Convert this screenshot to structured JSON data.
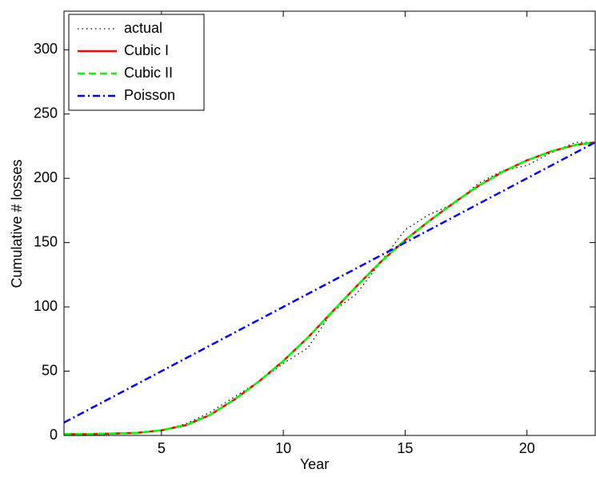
{
  "chart_data": {
    "type": "line",
    "x_label": "Year",
    "y_label": "Cumulative # losses",
    "x": [
      1,
      2,
      3,
      4,
      5,
      6,
      7,
      8,
      9,
      10,
      11,
      12,
      13,
      14,
      15,
      16,
      17,
      18,
      19,
      20,
      21,
      22,
      22.8
    ],
    "series": [
      {
        "name": "actual",
        "color": "#000000",
        "style": "dotted",
        "values": [
          0,
          0,
          1,
          2,
          4,
          9,
          18,
          30,
          42,
          56,
          68,
          96,
          110,
          135,
          160,
          172,
          180,
          196,
          206,
          210,
          220,
          228,
          228
        ]
      },
      {
        "name": "Cubic I",
        "color": "#ff0000",
        "style": "solid",
        "values": [
          1,
          1,
          1.5,
          2,
          4,
          8,
          16,
          28,
          42,
          58,
          76,
          96,
          116,
          135,
          152,
          167,
          181,
          194,
          205,
          214,
          221,
          226,
          228
        ]
      },
      {
        "name": "Cubic II",
        "color": "#00ff00",
        "style": "dashed",
        "values": [
          1,
          1,
          1.5,
          2,
          4,
          8,
          16,
          28,
          42,
          58,
          76,
          96,
          116,
          135,
          152,
          167,
          181,
          194,
          205,
          214,
          221,
          226,
          228
        ]
      },
      {
        "name": "Poisson",
        "color": "#0000ff",
        "style": "dashdot",
        "values": [
          10,
          20,
          30,
          40,
          50,
          60,
          70,
          80,
          90,
          100,
          110,
          120,
          130,
          140,
          150,
          160,
          170,
          180,
          190,
          200,
          210,
          220,
          228
        ]
      }
    ],
    "xlim": [
      1,
      22.8
    ],
    "xticks": [
      5,
      10,
      15,
      20
    ],
    "ylim": [
      0,
      330
    ],
    "yticks": [
      0,
      50,
      100,
      150,
      200,
      250,
      300
    ],
    "grid": false,
    "legend": "upper-left"
  }
}
